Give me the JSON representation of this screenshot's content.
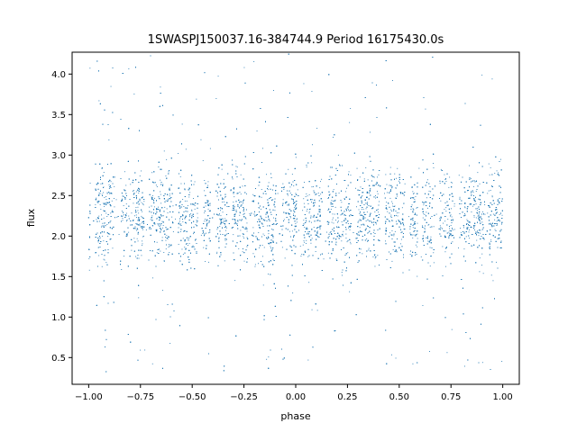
{
  "chart_data": {
    "type": "scatter",
    "title": "1SWASPJ150037.16-384744.9 Period 16175430.0s",
    "xlabel": "phase",
    "ylabel": "flux",
    "xlim": [
      -1.08,
      1.08
    ],
    "ylim": [
      0.17,
      4.27
    ],
    "x_ticks": [
      -1.0,
      -0.75,
      -0.5,
      -0.25,
      0.0,
      0.25,
      0.5,
      0.75,
      1.0
    ],
    "x_tick_labels": [
      "−1.00",
      "−0.75",
      "−0.50",
      "−0.25",
      "0.00",
      "0.25",
      "0.50",
      "0.75",
      "1.00"
    ],
    "y_ticks": [
      0.5,
      1.0,
      1.5,
      2.0,
      2.5,
      3.0,
      3.5,
      4.0
    ],
    "y_tick_labels": [
      "0.5",
      "1.0",
      "1.5",
      "2.0",
      "2.5",
      "3.0",
      "3.5",
      "4.0"
    ],
    "grid": false,
    "legend": "none",
    "point_color": "#1f77b4",
    "phase_range": [
      -1.0,
      1.0
    ],
    "flux_typical_range": [
      1.6,
      2.9
    ],
    "flux_extreme_range": [
      0.3,
      4.25
    ],
    "phase_gaps": [
      -0.98,
      -0.86,
      -0.72,
      -0.58,
      -0.46,
      -0.4,
      -0.32,
      -0.22,
      -0.08,
      0.02,
      0.14,
      0.28,
      0.42,
      0.54,
      0.6,
      0.68,
      0.78,
      0.92
    ]
  }
}
